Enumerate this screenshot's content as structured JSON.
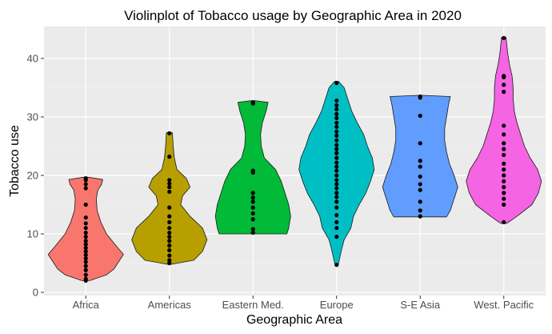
{
  "chart_data": {
    "type": "violin",
    "title": "Violinplot of Tobacco usage by Geographic Area in 2020",
    "xlabel": "Geographic Area",
    "ylabel": "Tobacco use",
    "ylim": [
      0,
      45
    ],
    "yticks": [
      0,
      10,
      20,
      30,
      40
    ],
    "grid": true,
    "legend": "none",
    "categories": [
      "Africa",
      "Americas",
      "Eastern Med.",
      "Europe",
      "S-E Asia",
      "West. Pacific"
    ],
    "colors": [
      "#F8766D",
      "#B79F00",
      "#00BA38",
      "#00BFC4",
      "#619CFF",
      "#F564E3"
    ],
    "series": [
      {
        "category": "Africa",
        "points": [
          2,
          2.3,
          3,
          3.8,
          4.5,
          5.2,
          5.8,
          6.4,
          7,
          7.6,
          8.2,
          8.8,
          9.5,
          10.2,
          11,
          11.8,
          12.8,
          15,
          17.8,
          18.5,
          19.2,
          19.5
        ],
        "density": [
          [
            2,
            0.1
          ],
          [
            3,
            0.55
          ],
          [
            4,
            0.75
          ],
          [
            5,
            0.85
          ],
          [
            6.5,
            1.0
          ],
          [
            8,
            0.8
          ],
          [
            10,
            0.55
          ],
          [
            12,
            0.4
          ],
          [
            14,
            0.3
          ],
          [
            16,
            0.28
          ],
          [
            17.5,
            0.32
          ],
          [
            18.5,
            0.42
          ],
          [
            19.3,
            0.45
          ],
          [
            19.7,
            0.05
          ]
        ]
      },
      {
        "category": "Americas",
        "points": [
          5,
          5.5,
          6.3,
          7.2,
          8,
          8.8,
          9.5,
          10.2,
          11,
          12,
          13,
          14.5,
          17.2,
          18,
          18.6,
          19.2,
          23.2,
          27.2
        ],
        "density": [
          [
            4.8,
            0.05
          ],
          [
            5.5,
            0.65
          ],
          [
            7,
            0.88
          ],
          [
            9,
            1.0
          ],
          [
            11,
            0.88
          ],
          [
            13,
            0.55
          ],
          [
            15,
            0.3
          ],
          [
            16.5,
            0.35
          ],
          [
            18,
            0.55
          ],
          [
            19.5,
            0.45
          ],
          [
            21,
            0.2
          ],
          [
            23,
            0.13
          ],
          [
            25,
            0.1
          ],
          [
            27.3,
            0.08
          ]
        ]
      },
      {
        "category": "Eastern Med.",
        "points": [
          10.2,
          10.8,
          12.5,
          13.5,
          14.5,
          15.5,
          16.2,
          17,
          20.5,
          20.8,
          32.3,
          32.5
        ],
        "density": [
          [
            10,
            0.9
          ],
          [
            11,
            0.95
          ],
          [
            13,
            1.0
          ],
          [
            15,
            0.95
          ],
          [
            17,
            0.85
          ],
          [
            19,
            0.75
          ],
          [
            21,
            0.6
          ],
          [
            23,
            0.3
          ],
          [
            25,
            0.22
          ],
          [
            27,
            0.2
          ],
          [
            29,
            0.25
          ],
          [
            31,
            0.35
          ],
          [
            32.5,
            0.4
          ],
          [
            32.8,
            0.05
          ]
        ]
      },
      {
        "category": "Europe",
        "points": [
          4.7,
          9.5,
          11,
          12,
          13.2,
          14.5,
          15.5,
          16.3,
          17,
          17.8,
          18.5,
          19.2,
          20,
          20.8,
          21.5,
          22.2,
          23,
          23.8,
          24.5,
          25.2,
          26,
          26.8,
          27.5,
          28.3,
          29,
          29.8,
          30.5,
          31.3,
          32,
          32.8,
          35.8
        ],
        "density": [
          [
            4.6,
            0.04
          ],
          [
            7,
            0.12
          ],
          [
            9,
            0.2
          ],
          [
            11,
            0.38
          ],
          [
            13,
            0.45
          ],
          [
            15,
            0.6
          ],
          [
            17,
            0.78
          ],
          [
            19,
            0.9
          ],
          [
            21,
            1.0
          ],
          [
            23,
            0.95
          ],
          [
            25,
            0.82
          ],
          [
            27,
            0.72
          ],
          [
            29,
            0.55
          ],
          [
            31,
            0.4
          ],
          [
            33,
            0.3
          ],
          [
            35,
            0.2
          ],
          [
            36.1,
            0.05
          ]
        ]
      },
      {
        "category": "S-E Asia",
        "points": [
          13,
          14,
          15.5,
          17.5,
          18.5,
          19.8,
          21.5,
          22.5,
          25.5,
          30.2,
          33.3,
          33.5
        ],
        "density": [
          [
            12.9,
            0.7
          ],
          [
            14,
            0.8
          ],
          [
            16,
            0.9
          ],
          [
            18,
            1.0
          ],
          [
            20,
            0.9
          ],
          [
            22,
            0.78
          ],
          [
            24,
            0.7
          ],
          [
            26,
            0.65
          ],
          [
            28,
            0.65
          ],
          [
            30,
            0.7
          ],
          [
            32,
            0.75
          ],
          [
            33.5,
            0.8
          ],
          [
            33.7,
            0.05
          ]
        ]
      },
      {
        "category": "West. Pacific",
        "points": [
          12,
          15,
          16,
          17,
          18,
          19,
          20,
          21,
          22,
          23.5,
          24.5,
          25.5,
          27,
          28.5,
          34.3,
          35.5,
          36.8,
          37,
          43.5
        ],
        "density": [
          [
            11.8,
            0.08
          ],
          [
            13,
            0.35
          ],
          [
            15,
            0.75
          ],
          [
            17,
            0.92
          ],
          [
            19,
            1.0
          ],
          [
            21,
            0.9
          ],
          [
            23,
            0.7
          ],
          [
            25,
            0.55
          ],
          [
            27,
            0.45
          ],
          [
            29,
            0.35
          ],
          [
            31,
            0.28
          ],
          [
            33,
            0.25
          ],
          [
            35,
            0.25
          ],
          [
            37,
            0.22
          ],
          [
            39,
            0.15
          ],
          [
            41,
            0.1
          ],
          [
            43.6,
            0.06
          ]
        ]
      }
    ]
  }
}
